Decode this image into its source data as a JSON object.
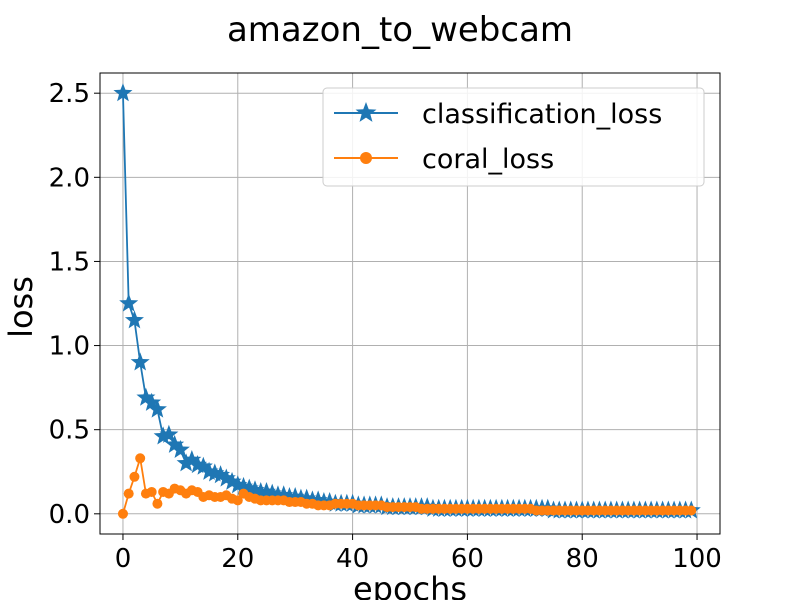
{
  "chart_data": {
    "type": "line",
    "title": "amazon_to_webcam",
    "xlabel": "epochs",
    "ylabel": "loss",
    "xlim": [
      -4,
      104
    ],
    "ylim": [
      -0.12,
      2.62
    ],
    "xticks": [
      0,
      20,
      40,
      60,
      80,
      100
    ],
    "xtick_labels": [
      "0",
      "20",
      "40",
      "60",
      "80",
      "100"
    ],
    "yticks": [
      0.0,
      0.5,
      1.0,
      1.5,
      2.0,
      2.5
    ],
    "ytick_labels": [
      "0.0",
      "0.5",
      "1.0",
      "1.5",
      "2.0",
      "2.5"
    ],
    "grid": true,
    "legend_position": "top-right",
    "series": [
      {
        "name": "classification_loss",
        "color": "#1f77b4",
        "marker": "star",
        "values": [
          2.5,
          1.25,
          1.15,
          0.9,
          0.69,
          0.66,
          0.62,
          0.46,
          0.47,
          0.41,
          0.38,
          0.3,
          0.32,
          0.29,
          0.28,
          0.25,
          0.24,
          0.23,
          0.21,
          0.19,
          0.17,
          0.16,
          0.15,
          0.14,
          0.13,
          0.13,
          0.12,
          0.11,
          0.11,
          0.1,
          0.1,
          0.09,
          0.09,
          0.08,
          0.08,
          0.07,
          0.07,
          0.06,
          0.06,
          0.06,
          0.06,
          0.05,
          0.05,
          0.05,
          0.05,
          0.05,
          0.04,
          0.04,
          0.04,
          0.04,
          0.04,
          0.04,
          0.04,
          0.04,
          0.03,
          0.03,
          0.03,
          0.03,
          0.03,
          0.03,
          0.03,
          0.03,
          0.03,
          0.03,
          0.03,
          0.03,
          0.03,
          0.03,
          0.03,
          0.03,
          0.03,
          0.03,
          0.03,
          0.03,
          0.03,
          0.02,
          0.02,
          0.02,
          0.02,
          0.02,
          0.02,
          0.02,
          0.02,
          0.02,
          0.02,
          0.02,
          0.02,
          0.02,
          0.02,
          0.02,
          0.02,
          0.02,
          0.02,
          0.02,
          0.02,
          0.02,
          0.02,
          0.02,
          0.02,
          0.02
        ]
      },
      {
        "name": "coral_loss",
        "color": "#ff7f0e",
        "marker": "circle",
        "values": [
          0.0,
          0.12,
          0.22,
          0.33,
          0.12,
          0.13,
          0.06,
          0.13,
          0.12,
          0.15,
          0.14,
          0.12,
          0.14,
          0.13,
          0.1,
          0.11,
          0.1,
          0.1,
          0.11,
          0.09,
          0.08,
          0.12,
          0.1,
          0.09,
          0.08,
          0.08,
          0.08,
          0.08,
          0.08,
          0.07,
          0.07,
          0.07,
          0.06,
          0.06,
          0.05,
          0.05,
          0.05,
          0.06,
          0.06,
          0.06,
          0.06,
          0.05,
          0.05,
          0.05,
          0.05,
          0.05,
          0.04,
          0.04,
          0.04,
          0.04,
          0.04,
          0.04,
          0.03,
          0.03,
          0.03,
          0.03,
          0.03,
          0.03,
          0.03,
          0.03,
          0.03,
          0.03,
          0.03,
          0.03,
          0.03,
          0.03,
          0.03,
          0.03,
          0.03,
          0.03,
          0.03,
          0.03,
          0.02,
          0.02,
          0.02,
          0.02,
          0.02,
          0.02,
          0.02,
          0.02,
          0.02,
          0.02,
          0.02,
          0.02,
          0.02,
          0.02,
          0.02,
          0.02,
          0.02,
          0.02,
          0.02,
          0.02,
          0.02,
          0.02,
          0.02,
          0.02,
          0.02,
          0.02,
          0.02,
          0.02
        ]
      }
    ]
  }
}
